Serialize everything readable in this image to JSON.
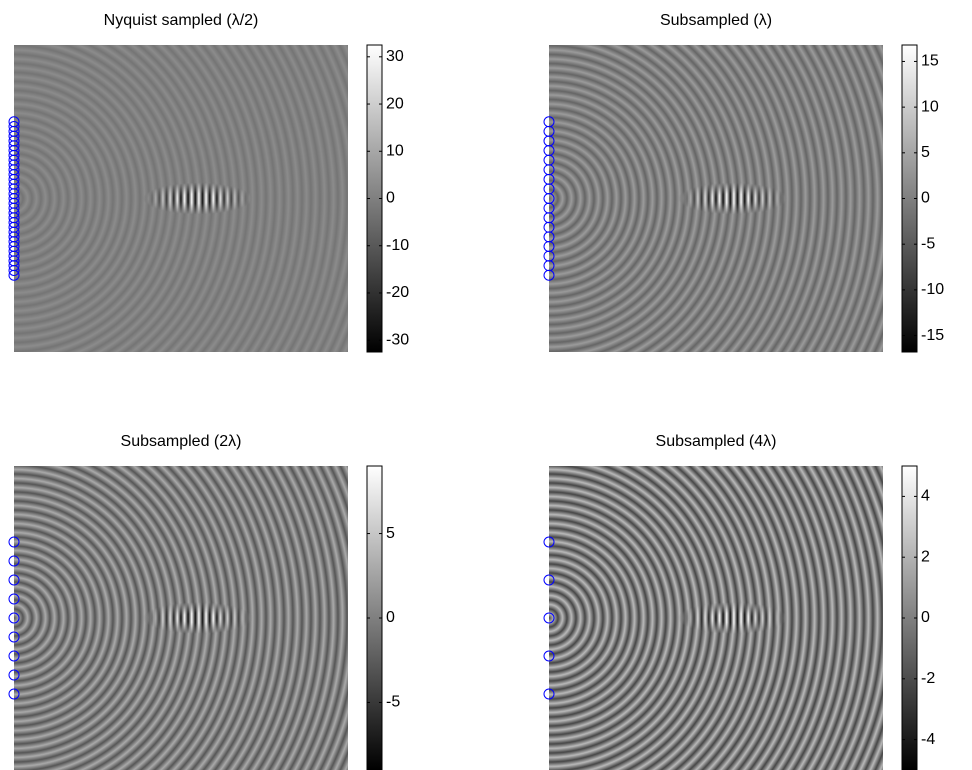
{
  "chart_data": [
    {
      "type": "image",
      "title": "Nyquist sampled (λ/2)",
      "colormap": "gray",
      "clim": [
        -32.5,
        32.5
      ],
      "cticks": [
        -30,
        -20,
        -10,
        0,
        10,
        20,
        30
      ]
    },
    {
      "type": "image",
      "title": "Subsampled (λ)",
      "colormap": "gray",
      "clim": [
        -16.8,
        16.8
      ],
      "cticks": [
        -15,
        -10,
        -5,
        0,
        5,
        10,
        15
      ]
    },
    {
      "type": "image",
      "title": "Subsampled (2λ)",
      "colormap": "gray",
      "clim": [
        -9,
        9
      ],
      "cticks": [
        -5,
        0,
        5
      ]
    },
    {
      "type": "image",
      "title": "Subsampled (4λ)",
      "colormap": "gray",
      "clim": [
        -5,
        5
      ],
      "cticks": [
        -4,
        -2,
        0,
        2,
        4
      ]
    }
  ]
}
